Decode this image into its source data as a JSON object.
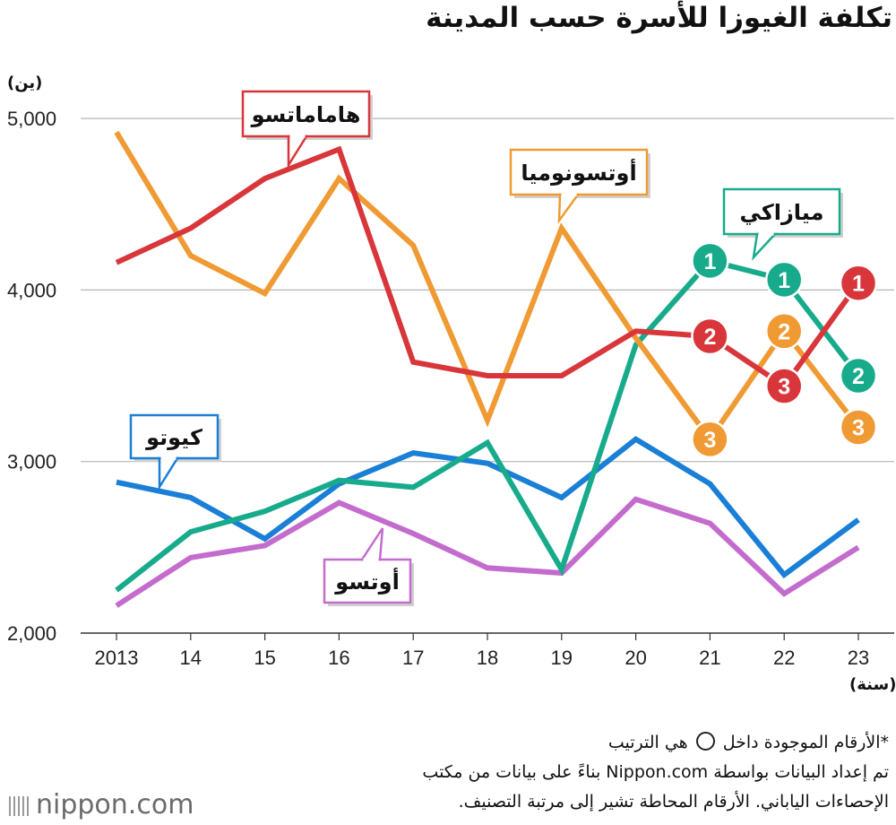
{
  "title": "تكلفة الغيوزا للأسرة حسب المدينة",
  "y_unit": "(ين)",
  "x_unit": "(سنة)",
  "notes": {
    "rank_prefix": "*الأرقام الموجودة داخل",
    "rank_suffix": "هي الترتيب",
    "source_line1": "تم إعداد البيانات بواسطة Nippon.com بناءً على بيانات من مكتب",
    "source_line2": "الإحصاءات الياباني. الأرقام المحاطة تشير إلى مرتبة التصنيف."
  },
  "logo": "nippon.com",
  "chart_data": {
    "type": "line",
    "title": "تكلفة الغيوزا للأسرة حسب المدينة",
    "xlabel": "(سنة)",
    "ylabel": "(ين)",
    "x": [
      "2013",
      "14",
      "15",
      "16",
      "17",
      "18",
      "19",
      "20",
      "21",
      "22",
      "23"
    ],
    "ylim": [
      2000,
      5000
    ],
    "yticks": [
      2000,
      3000,
      4000,
      5000
    ],
    "ytick_labels": [
      "2,000",
      "3,000",
      "4,000",
      "5,000"
    ],
    "grid": true,
    "series": [
      {
        "name": "هاماماتسو",
        "color": "#d8363a",
        "values": [
          4160,
          4360,
          4650,
          4820,
          3580,
          3500,
          3500,
          3760,
          3730,
          3440,
          4040
        ],
        "ranks": [
          null,
          null,
          null,
          null,
          null,
          null,
          null,
          null,
          2,
          3,
          1
        ]
      },
      {
        "name": "أوتسونوميا",
        "color": "#f09a33",
        "values": [
          4920,
          4200,
          3980,
          4650,
          4260,
          3240,
          4360,
          3720,
          3130,
          3760,
          3200
        ],
        "ranks": [
          null,
          null,
          null,
          null,
          null,
          null,
          null,
          null,
          3,
          2,
          3
        ]
      },
      {
        "name": "ميازاكي",
        "color": "#18ab8b",
        "values": [
          2250,
          2590,
          2710,
          2890,
          2850,
          3110,
          2370,
          3680,
          4170,
          4060,
          3500
        ],
        "ranks": [
          null,
          null,
          null,
          null,
          null,
          null,
          null,
          null,
          1,
          1,
          2
        ]
      },
      {
        "name": "كيوتو",
        "color": "#1a7fd6",
        "values": [
          2880,
          2790,
          2550,
          2870,
          3050,
          2990,
          2790,
          3130,
          2870,
          2340,
          2660
        ],
        "ranks": [
          null,
          null,
          null,
          null,
          null,
          null,
          null,
          null,
          null,
          null,
          null
        ]
      },
      {
        "name": "أوتسو",
        "color": "#c36cce",
        "values": [
          2160,
          2440,
          2510,
          2760,
          2580,
          2380,
          2350,
          2780,
          2640,
          2230,
          2500
        ],
        "ranks": [
          null,
          null,
          null,
          null,
          null,
          null,
          null,
          null,
          null,
          null,
          null
        ]
      }
    ]
  }
}
